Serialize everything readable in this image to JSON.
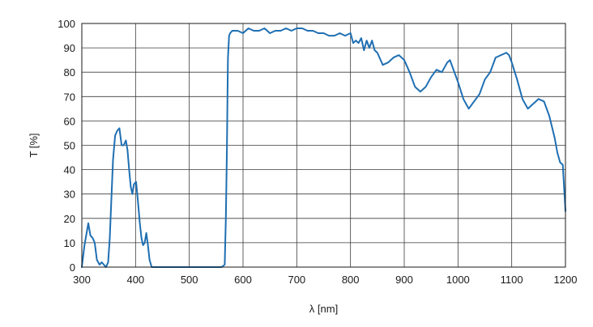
{
  "chart_data": {
    "type": "line",
    "title": "",
    "xlabel": "λ [nm]",
    "ylabel": "T [%]",
    "xlim": [
      300,
      1200
    ],
    "ylim": [
      0,
      100
    ],
    "x_ticks": [
      300,
      400,
      500,
      600,
      700,
      800,
      900,
      1000,
      1100,
      1200
    ],
    "y_ticks": [
      0,
      10,
      20,
      30,
      40,
      50,
      60,
      70,
      80,
      90,
      100
    ],
    "grid": true,
    "legend": "none",
    "line_color": "#1f6fb2",
    "grid_color": "#3a3a3a",
    "series": [
      {
        "x": [
          300,
          305,
          312,
          316,
          320,
          324,
          328,
          333,
          337,
          341,
          345,
          349,
          352,
          355,
          358,
          362,
          366,
          370,
          374,
          378,
          382,
          385,
          388,
          391,
          394,
          397,
          401,
          404,
          408,
          411,
          414,
          417,
          420,
          423,
          426,
          430,
          432,
          435,
          440,
          500,
          560,
          566,
          568,
          570,
          571,
          572,
          574,
          576,
          580,
          590,
          600,
          610,
          620,
          630,
          640,
          650,
          660,
          670,
          680,
          690,
          700,
          710,
          720,
          730,
          740,
          750,
          760,
          770,
          780,
          790,
          800,
          805,
          810,
          815,
          820,
          825,
          830,
          835,
          840,
          845,
          850,
          860,
          870,
          880,
          890,
          900,
          910,
          920,
          930,
          940,
          950,
          960,
          970,
          980,
          985,
          990,
          1000,
          1010,
          1020,
          1030,
          1040,
          1050,
          1060,
          1070,
          1080,
          1090,
          1095,
          1100,
          1110,
          1120,
          1130,
          1140,
          1150,
          1160,
          1170,
          1180,
          1185,
          1190,
          1195,
          1200
        ],
        "y": [
          0,
          9,
          18,
          13,
          12,
          10,
          3,
          1,
          2,
          1,
          0,
          2,
          12,
          28,
          44,
          54,
          56,
          57,
          50,
          50,
          52,
          48,
          40,
          33,
          30,
          34,
          35,
          28,
          18,
          12,
          9,
          10,
          14,
          9,
          3,
          0,
          0,
          0,
          0,
          0,
          0,
          1,
          20,
          48,
          70,
          86,
          95,
          96,
          97,
          97,
          96,
          98,
          97,
          97,
          98,
          96,
          97,
          97,
          98,
          97,
          98,
          98,
          97,
          97,
          96,
          96,
          95,
          95,
          96,
          95,
          96,
          92,
          93,
          92,
          94,
          89,
          93,
          90,
          93,
          89,
          88,
          83,
          84,
          86,
          87,
          85,
          80,
          74,
          72,
          74,
          78,
          81,
          80,
          84,
          85,
          82,
          76,
          69,
          65,
          68,
          71,
          77,
          80,
          86,
          87,
          88,
          87,
          84,
          77,
          69,
          65,
          67,
          69,
          68,
          62,
          53,
          47,
          43,
          42,
          23
        ]
      }
    ]
  }
}
